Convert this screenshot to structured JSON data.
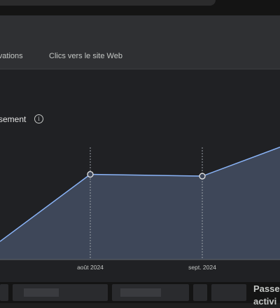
{
  "tabs": [
    {
      "label": "ervations"
    },
    {
      "label": "Clics vers le site Web"
    }
  ],
  "section": {
    "title": "ssement",
    "info_icon": "info-icon"
  },
  "chart_data": {
    "type": "area",
    "x": [
      "",
      "août 2024",
      "sept. 2024",
      ""
    ],
    "values": [
      10,
      47,
      46,
      62
    ],
    "ylim": [
      0,
      70
    ],
    "xlabels": [
      "août 2024",
      "sept. 2024"
    ],
    "line_color": "#8ab4f8",
    "fill_color": "#3e4759",
    "grid": false
  },
  "side_panel": {
    "line1": "Passe",
    "line2": "activi"
  }
}
